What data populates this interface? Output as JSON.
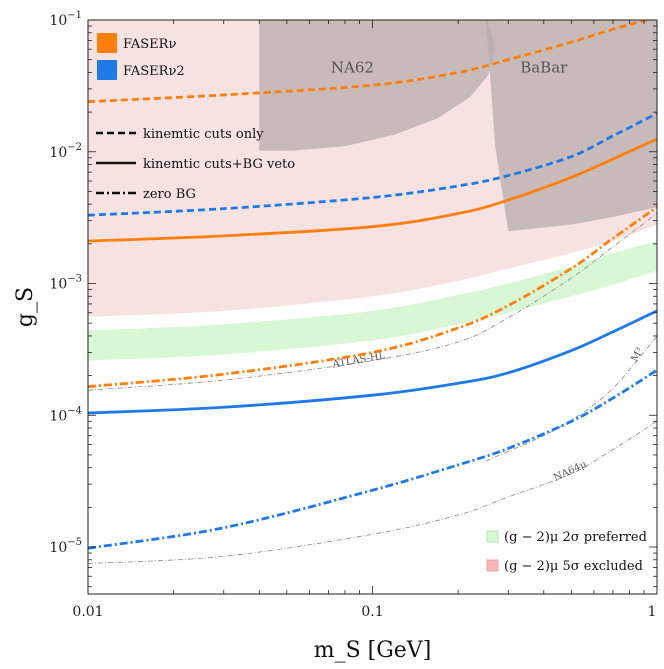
{
  "chart_data": {
    "type": "line",
    "xscale": "log",
    "yscale": "log",
    "xlim": [
      0.01,
      1
    ],
    "ylim": [
      4.4e-06,
      0.1
    ],
    "xlabel": "m_S [GeV]",
    "ylabel": "g_S",
    "x_tick_labels": [
      {
        "value": 0.01,
        "label": "0.01"
      },
      {
        "value": 0.1,
        "label": "0.1"
      },
      {
        "value": 1,
        "label": "1"
      }
    ],
    "y_tick_labels": [
      {
        "value": 0.1,
        "base": "10",
        "exp": "−1"
      },
      {
        "value": 0.01,
        "base": "10",
        "exp": "−2"
      },
      {
        "value": 0.001,
        "base": "10",
        "exp": "−3"
      },
      {
        "value": 0.0001,
        "base": "10",
        "exp": "−4"
      },
      {
        "value": 1e-05,
        "base": "10",
        "exp": "−5"
      }
    ],
    "colors": {
      "faser": "#ff7f0e",
      "faser2": "#1f7ae8",
      "excluded": "#f7e2e2",
      "preferred": "#d8f7d4",
      "experiment": "#b8acaa"
    },
    "series": [
      {
        "name": "FASERν kinemtic cuts only",
        "color": "#ff7f0e",
        "style": "dashed",
        "x": [
          0.01,
          0.03,
          0.1,
          0.2,
          0.3,
          0.5,
          0.7,
          1.0
        ],
        "y": [
          0.024,
          0.027,
          0.032,
          0.04,
          0.05,
          0.068,
          0.085,
          0.105
        ]
      },
      {
        "name": "FASERν kinemtic cuts+BG veto",
        "color": "#ff7f0e",
        "style": "solid",
        "x": [
          0.01,
          0.03,
          0.1,
          0.2,
          0.3,
          0.5,
          0.7,
          1.0
        ],
        "y": [
          0.0021,
          0.0023,
          0.0027,
          0.0034,
          0.0043,
          0.0064,
          0.0088,
          0.0125
        ]
      },
      {
        "name": "FASERν zero BG",
        "color": "#ff7f0e",
        "style": "dashdot",
        "x": [
          0.01,
          0.03,
          0.1,
          0.2,
          0.3,
          0.5,
          0.7,
          1.0
        ],
        "y": [
          0.000165,
          0.000205,
          0.0003,
          0.00046,
          0.00068,
          0.0013,
          0.0022,
          0.0038
        ]
      },
      {
        "name": "FASERν2 kinemtic cuts only",
        "color": "#1f7ae8",
        "style": "dashed",
        "x": [
          0.01,
          0.03,
          0.1,
          0.2,
          0.3,
          0.5,
          0.7,
          1.0
        ],
        "y": [
          0.0033,
          0.0037,
          0.0045,
          0.0055,
          0.0066,
          0.0092,
          0.0132,
          0.0195
        ]
      },
      {
        "name": "FASERν2 kinemtic cuts+BG veto",
        "color": "#1f7ae8",
        "style": "solid",
        "x": [
          0.01,
          0.03,
          0.1,
          0.2,
          0.3,
          0.5,
          0.7,
          1.0
        ],
        "y": [
          0.000104,
          0.000115,
          0.000142,
          0.000175,
          0.00021,
          0.00031,
          0.00043,
          0.00062
        ]
      },
      {
        "name": "FASERν2 zero BG",
        "color": "#1f7ae8",
        "style": "dashdot",
        "x": [
          0.01,
          0.03,
          0.1,
          0.2,
          0.3,
          0.5,
          0.7,
          1.0
        ],
        "y": [
          9.8e-06,
          1.4e-05,
          2.7e-05,
          4.2e-05,
          5.6e-05,
          9e-05,
          0.000135,
          0.00022
        ]
      }
    ],
    "bands": [
      {
        "name": "(g−2)μ 5σ excluded",
        "color": "#f7e2e2",
        "x": [
          0.01,
          0.03,
          0.1,
          0.2,
          0.3,
          0.5,
          0.7,
          1.0
        ],
        "lower": [
          0.00056,
          0.00062,
          0.0008,
          0.00105,
          0.0013,
          0.0017,
          0.0021,
          0.0028
        ],
        "upper": [
          0.1,
          0.1,
          0.1,
          0.1,
          0.1,
          0.1,
          0.1,
          0.1
        ]
      },
      {
        "name": "(g−2)μ 2σ preferred",
        "color": "#d8f7d4",
        "x": [
          0.01,
          0.03,
          0.1,
          0.2,
          0.3,
          0.5,
          0.7,
          1.0
        ],
        "lower": [
          0.00026,
          0.00029,
          0.00037,
          0.00049,
          0.0006,
          0.0008,
          0.00098,
          0.00125
        ],
        "upper": [
          0.00044,
          0.00049,
          0.00062,
          0.00082,
          0.001,
          0.00135,
          0.0017,
          0.0021
        ]
      }
    ],
    "exclusions": [
      {
        "name": "NA62",
        "label": "NA62",
        "label_x": 0.085,
        "label_y": 0.04,
        "points": [
          [
            0.04,
            0.1
          ],
          [
            0.255,
            0.1
          ],
          [
            0.27,
            0.06
          ],
          [
            0.255,
            0.038
          ],
          [
            0.22,
            0.026
          ],
          [
            0.17,
            0.018
          ],
          [
            0.12,
            0.0135
          ],
          [
            0.08,
            0.011
          ],
          [
            0.052,
            0.0102
          ],
          [
            0.04,
            0.0102
          ]
        ]
      },
      {
        "name": "BaBar",
        "label": "BaBar",
        "label_x": 0.4,
        "label_y": 0.04,
        "points": [
          [
            0.25,
            0.1
          ],
          [
            1.0,
            0.1
          ],
          [
            1.0,
            0.0038
          ],
          [
            0.7,
            0.0032
          ],
          [
            0.5,
            0.0028
          ],
          [
            0.3,
            0.0025
          ],
          [
            0.27,
            0.011
          ],
          [
            0.255,
            0.06
          ]
        ]
      }
    ],
    "thin_curves": [
      {
        "name": "ATLAS-HL",
        "label": "ATLAS-HL",
        "label_x": 0.09,
        "label_y": 0.00025,
        "rotate": -10,
        "x": [
          0.01,
          0.03,
          0.1,
          0.2,
          0.3,
          0.5,
          0.7,
          1.0
        ],
        "y": [
          0.000155,
          0.000185,
          0.00026,
          0.00036,
          0.00055,
          0.0011,
          0.0019,
          0.0034
        ]
      },
      {
        "name": "M3",
        "label": "M³",
        "label_x": 0.87,
        "label_y": 0.00028,
        "rotate": -60,
        "x": [
          0.25,
          0.4,
          0.55,
          0.7,
          0.85,
          1.0
        ],
        "y": [
          4.5e-05,
          7e-05,
          0.000105,
          0.00016,
          0.00026,
          0.0004
        ]
      },
      {
        "name": "NA64μ",
        "label": "NA64μ",
        "label_x": 0.5,
        "label_y": 3.6e-05,
        "rotate": -25,
        "x": [
          0.01,
          0.03,
          0.1,
          0.2,
          0.3,
          0.5,
          0.7,
          1.0
        ],
        "y": [
          7.5e-06,
          8.5e-06,
          1.25e-05,
          1.75e-05,
          2.4e-05,
          3.6e-05,
          5.5e-05,
          9e-05
        ]
      }
    ],
    "legend_top": [
      {
        "label": "FASERν",
        "color": "#ff7f0e"
      },
      {
        "label": "FASERν2",
        "color": "#1f7ae8"
      }
    ],
    "legend_styles": [
      {
        "label": "kinemtic cuts only",
        "style": "dashed"
      },
      {
        "label": "kinemtic cuts+BG veto",
        "style": "solid"
      },
      {
        "label": "zero BG",
        "style": "dashdot"
      }
    ],
    "legend_bottom": [
      {
        "label": "(g − 2)μ  2σ preferred",
        "color": "#d8f7d4",
        "edge": "#a8e6a0"
      },
      {
        "label": "(g − 2)μ  5σ excluded",
        "color": "#f4b8b8",
        "edge": "#e89a9a"
      }
    ]
  }
}
